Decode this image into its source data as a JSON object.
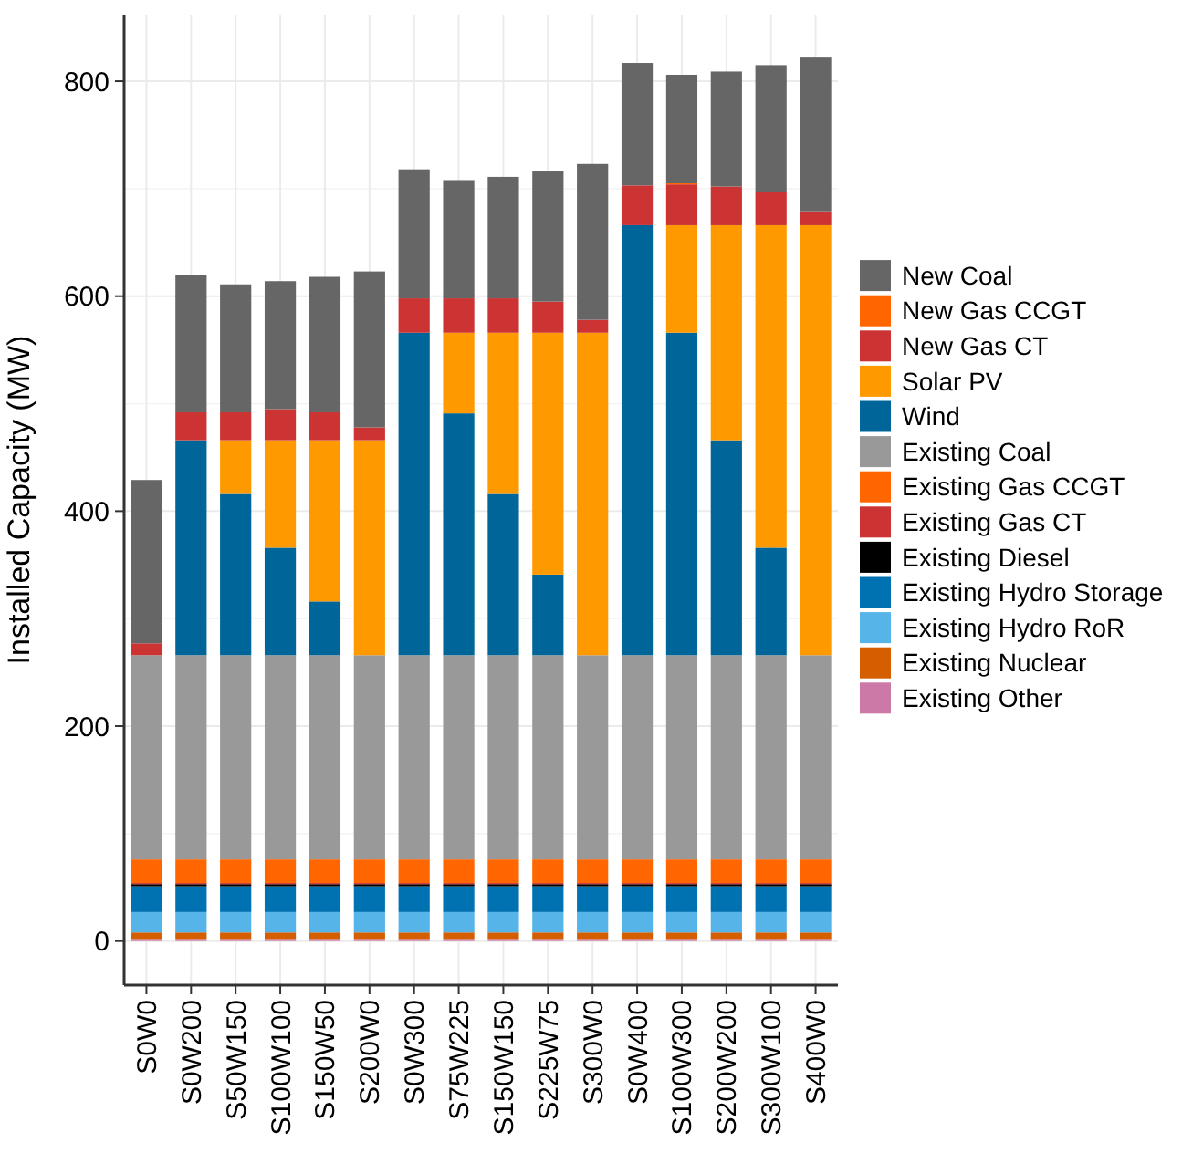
{
  "chart_data": {
    "type": "bar",
    "stacked": true,
    "ylabel": "Installed Capacity (MW)",
    "categories": [
      "S0W0",
      "S0W200",
      "S50W150",
      "S100W100",
      "S150W50",
      "S200W0",
      "S0W300",
      "S75W225",
      "S150W150",
      "S225W75",
      "S300W0",
      "S0W400",
      "S100W300",
      "S200W200",
      "S300W100",
      "S400W0"
    ],
    "ylim": [
      -41,
      862
    ],
    "yticks": [
      0,
      200,
      400,
      600,
      800
    ],
    "grid": true,
    "legend": "right",
    "series": [
      {
        "name": "Existing Other",
        "color": "#cc79a7",
        "values": [
          2,
          2,
          2,
          2,
          2,
          2,
          2,
          2,
          2,
          2,
          2,
          2,
          2,
          2,
          2,
          2
        ]
      },
      {
        "name": "Existing Nuclear",
        "color": "#d55e00",
        "values": [
          6,
          6,
          6,
          6,
          6,
          6,
          6,
          6,
          6,
          6,
          6,
          6,
          6,
          6,
          6,
          6
        ]
      },
      {
        "name": "Existing Hydro RoR",
        "color": "#56b4e9",
        "values": [
          19,
          19,
          19,
          19,
          19,
          19,
          19,
          19,
          19,
          19,
          19,
          19,
          19,
          19,
          19,
          19
        ]
      },
      {
        "name": "Existing Hydro Storage",
        "color": "#0072b2",
        "values": [
          24,
          24,
          24,
          24,
          24,
          24,
          24,
          24,
          24,
          24,
          24,
          24,
          24,
          24,
          24,
          24
        ]
      },
      {
        "name": "Existing Diesel",
        "color": "#000000",
        "values": [
          2,
          2,
          2,
          2,
          2,
          2,
          2,
          2,
          2,
          2,
          2,
          2,
          2,
          2,
          2,
          2
        ]
      },
      {
        "name": "Existing Gas CT",
        "color": "#cc3333",
        "values": [
          1,
          1,
          1,
          1,
          1,
          1,
          1,
          1,
          1,
          1,
          1,
          1,
          1,
          1,
          1,
          1
        ]
      },
      {
        "name": "Existing Gas CCGT",
        "color": "#ff6600",
        "values": [
          22,
          22,
          22,
          22,
          22,
          22,
          22,
          22,
          22,
          22,
          22,
          22,
          22,
          22,
          22,
          22
        ]
      },
      {
        "name": "Existing Coal",
        "color": "#999999",
        "values": [
          190,
          190,
          190,
          190,
          190,
          190,
          190,
          190,
          190,
          190,
          190,
          190,
          190,
          190,
          190,
          190
        ]
      },
      {
        "name": "Wind",
        "color": "#006699",
        "values": [
          0,
          200,
          150,
          100,
          50,
          0,
          300,
          225,
          150,
          75,
          0,
          400,
          300,
          200,
          100,
          0
        ]
      },
      {
        "name": "Solar PV",
        "color": "#ff9900",
        "values": [
          0,
          0,
          50,
          100,
          150,
          200,
          0,
          75,
          150,
          225,
          300,
          0,
          100,
          200,
          300,
          400
        ]
      },
      {
        "name": "New Gas CT",
        "color": "#cc3333",
        "values": [
          11,
          26,
          26,
          29,
          26,
          12,
          32,
          32,
          32,
          29,
          12,
          37,
          38,
          36,
          31,
          13
        ]
      },
      {
        "name": "New Gas CCGT",
        "color": "#ff6600",
        "values": [
          0,
          0,
          0,
          0,
          0,
          0,
          0,
          0,
          0,
          0,
          0,
          0,
          1,
          0,
          0,
          0
        ]
      },
      {
        "name": "New Coal",
        "color": "#666666",
        "values": [
          152,
          128,
          119,
          119,
          126,
          145,
          120,
          110,
          113,
          121,
          145,
          114,
          101,
          107,
          118,
          143
        ]
      }
    ]
  }
}
